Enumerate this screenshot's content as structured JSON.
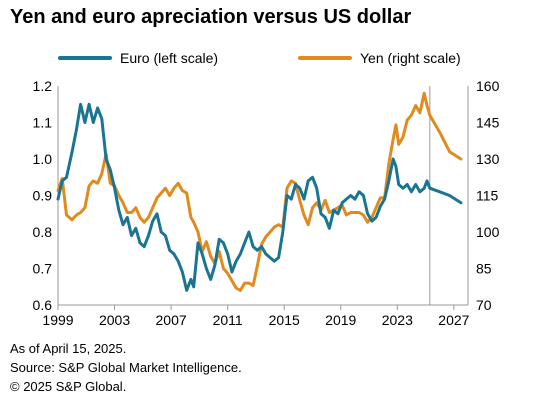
{
  "title": "Yen and euro apreciation versus US dollar",
  "footnotes": {
    "date": "As of April 15, 2025.",
    "source": "Source: S&P Global Market Intelligence.",
    "copyright": "© 2025 S&P Global."
  },
  "colors": {
    "euro": "#1a7593",
    "yen": "#e18a1e",
    "axis": "#9a9a9a"
  },
  "chart_data": {
    "type": "line",
    "title": "Yen and euro apreciation versus US dollar",
    "xlim": [
      1999,
      2028
    ],
    "x_ticks": [
      1999,
      2003,
      2007,
      2011,
      2015,
      2019,
      2023,
      2027
    ],
    "x_tick_labels": [
      "1999",
      "2003",
      "2007",
      "2011",
      "2015",
      "2019",
      "2023",
      "2027"
    ],
    "y_left": {
      "range": [
        0.6,
        1.2
      ],
      "ticks": [
        "0.6",
        "0.7",
        "0.8",
        "0.9",
        "1.0",
        "1.1",
        "1.2"
      ]
    },
    "y_right": {
      "range": [
        70,
        160
      ],
      "ticks": [
        "70",
        "85",
        "100",
        "115",
        "130",
        "145",
        "160"
      ]
    },
    "forecast_start": 2025.3,
    "legend": {
      "position": "top"
    },
    "series": [
      {
        "name": "Euro (left scale)",
        "axis": "left",
        "x": [
          1999.0,
          1999.3,
          1999.6,
          2000.0,
          2000.3,
          2000.6,
          2000.9,
          2001.2,
          2001.5,
          2001.8,
          2002.1,
          2002.4,
          2002.7,
          2003.0,
          2003.3,
          2003.6,
          2003.9,
          2004.2,
          2004.5,
          2004.8,
          2005.1,
          2005.4,
          2005.7,
          2006.0,
          2006.3,
          2006.6,
          2006.9,
          2007.2,
          2007.5,
          2007.8,
          2008.1,
          2008.4,
          2008.6,
          2008.9,
          2009.2,
          2009.5,
          2009.8,
          2010.1,
          2010.4,
          2010.7,
          2011.0,
          2011.3,
          2011.6,
          2011.9,
          2012.2,
          2012.5,
          2012.8,
          2013.1,
          2013.4,
          2013.7,
          2014.0,
          2014.3,
          2014.6,
          2014.9,
          2015.2,
          2015.5,
          2015.8,
          2016.1,
          2016.4,
          2016.7,
          2017.0,
          2017.3,
          2017.6,
          2017.9,
          2018.2,
          2018.5,
          2018.8,
          2019.1,
          2019.4,
          2019.7,
          2020.0,
          2020.3,
          2020.6,
          2020.9,
          2021.2,
          2021.5,
          2021.8,
          2022.1,
          2022.4,
          2022.7,
          2022.9,
          2023.1,
          2023.4,
          2023.7,
          2024.0,
          2024.3,
          2024.6,
          2024.9,
          2025.1,
          2025.3,
          2026.0,
          2026.7,
          2027.5
        ],
        "values": [
          0.89,
          0.94,
          0.95,
          1.02,
          1.08,
          1.15,
          1.1,
          1.15,
          1.1,
          1.14,
          1.11,
          1.0,
          0.97,
          0.92,
          0.86,
          0.82,
          0.84,
          0.79,
          0.81,
          0.77,
          0.76,
          0.79,
          0.83,
          0.85,
          0.8,
          0.79,
          0.75,
          0.74,
          0.72,
          0.69,
          0.64,
          0.67,
          0.65,
          0.77,
          0.74,
          0.7,
          0.67,
          0.71,
          0.78,
          0.77,
          0.74,
          0.69,
          0.72,
          0.74,
          0.77,
          0.8,
          0.76,
          0.75,
          0.76,
          0.74,
          0.73,
          0.72,
          0.73,
          0.8,
          0.9,
          0.89,
          0.93,
          0.92,
          0.89,
          0.94,
          0.95,
          0.92,
          0.85,
          0.84,
          0.81,
          0.86,
          0.85,
          0.88,
          0.89,
          0.9,
          0.89,
          0.91,
          0.9,
          0.85,
          0.83,
          0.84,
          0.87,
          0.89,
          0.94,
          1.0,
          0.98,
          0.93,
          0.92,
          0.93,
          0.91,
          0.93,
          0.91,
          0.92,
          0.94,
          0.92,
          0.91,
          0.9,
          0.88
        ]
      },
      {
        "name": "Yen (right scale)",
        "axis": "right",
        "x": [
          1999.0,
          1999.3,
          1999.6,
          2000.0,
          2000.3,
          2000.6,
          2000.9,
          2001.2,
          2001.5,
          2001.8,
          2002.1,
          2002.4,
          2002.7,
          2003.0,
          2003.3,
          2003.6,
          2003.9,
          2004.2,
          2004.5,
          2004.8,
          2005.1,
          2005.4,
          2005.7,
          2006.0,
          2006.3,
          2006.6,
          2006.9,
          2007.2,
          2007.5,
          2007.8,
          2008.1,
          2008.4,
          2008.6,
          2008.9,
          2009.2,
          2009.5,
          2009.8,
          2010.1,
          2010.4,
          2010.7,
          2011.0,
          2011.3,
          2011.6,
          2011.9,
          2012.2,
          2012.5,
          2012.8,
          2013.1,
          2013.4,
          2013.7,
          2014.0,
          2014.3,
          2014.6,
          2014.9,
          2015.2,
          2015.5,
          2015.8,
          2016.1,
          2016.4,
          2016.7,
          2017.0,
          2017.3,
          2017.6,
          2017.9,
          2018.2,
          2018.5,
          2018.8,
          2019.1,
          2019.4,
          2019.7,
          2020.0,
          2020.3,
          2020.6,
          2020.9,
          2021.2,
          2021.5,
          2021.8,
          2022.1,
          2022.4,
          2022.7,
          2022.9,
          2023.1,
          2023.4,
          2023.7,
          2024.0,
          2024.3,
          2024.6,
          2024.9,
          2025.1,
          2025.3,
          2026.0,
          2026.7,
          2027.5
        ],
        "values": [
          117,
          122,
          107,
          105,
          107,
          108,
          110,
          119,
          121,
          120,
          124,
          132,
          120,
          119,
          115,
          112,
          108,
          108,
          110,
          106,
          104,
          106,
          110,
          114,
          116,
          118,
          115,
          118,
          120,
          117,
          116,
          106,
          104,
          100,
          92,
          96,
          90,
          87,
          92,
          85,
          83,
          80,
          77,
          76,
          79,
          79,
          78,
          86,
          95,
          98,
          100,
          102,
          103,
          102,
          118,
          121,
          120,
          113,
          107,
          103,
          110,
          112,
          109,
          113,
          108,
          109,
          110,
          111,
          107,
          108,
          108,
          108,
          107,
          104,
          106,
          110,
          114,
          114,
          128,
          138,
          144,
          136,
          139,
          146,
          148,
          152,
          149,
          157,
          152,
          148,
          141,
          133,
          130
        ]
      }
    ]
  }
}
